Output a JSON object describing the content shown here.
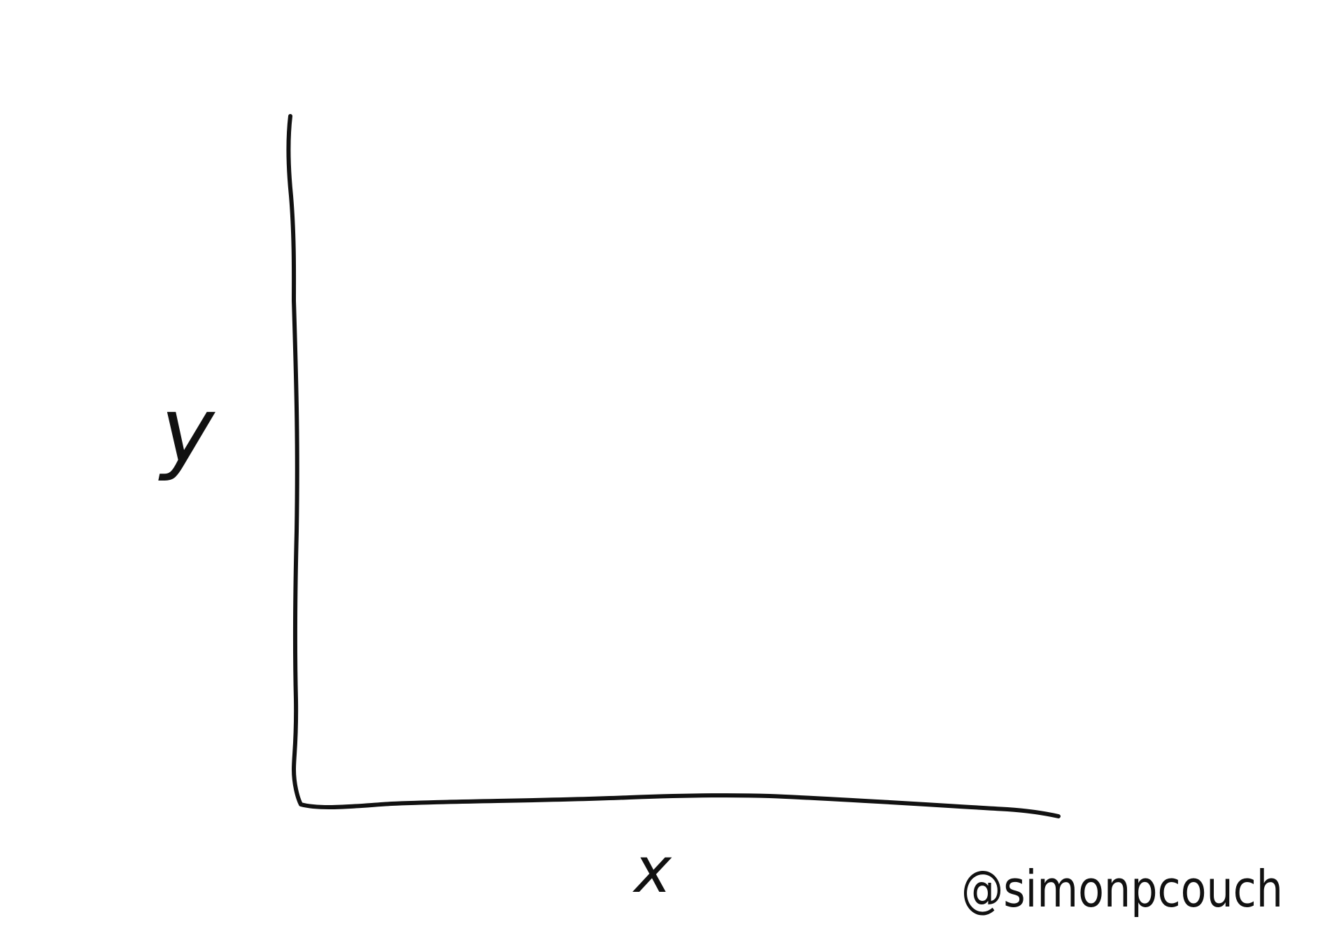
{
  "axis_labels": {
    "y": "y",
    "x": "x"
  },
  "credit": "@simonpcouch"
}
